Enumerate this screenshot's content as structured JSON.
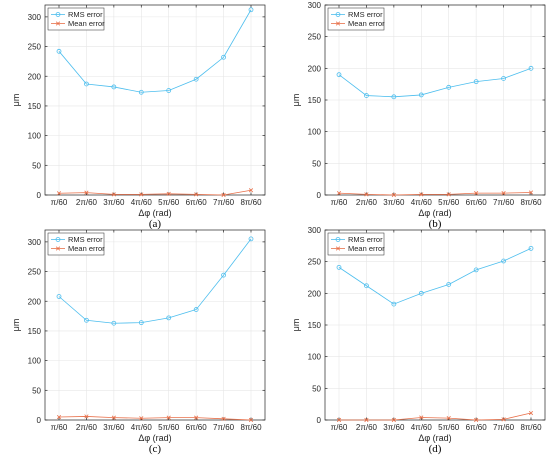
{
  "chart_data": [
    {
      "type": "line",
      "caption": "(a)",
      "categories": [
        "π/60",
        "2π/60",
        "3π/60",
        "4π/60",
        "5π/60",
        "6π/60",
        "7π/60",
        "8π/60"
      ],
      "xlabel": "Δφ (rad)",
      "ylabel": "μm",
      "ylim": [
        0,
        320
      ],
      "yticks": [
        0,
        50,
        100,
        150,
        200,
        250,
        300
      ],
      "grid": true,
      "legend": "top-left",
      "series": [
        {
          "name": "RMS error",
          "color": "#4DBEEE",
          "marker": "circle",
          "values": [
            242,
            187,
            182,
            173,
            176,
            195,
            232,
            312
          ]
        },
        {
          "name": "Mean error",
          "color": "#E8704A",
          "marker": "x",
          "values": [
            3,
            4,
            1,
            1,
            2,
            1,
            0,
            8
          ]
        }
      ]
    },
    {
      "type": "line",
      "caption": "(b)",
      "categories": [
        "π/60",
        "2π/60",
        "3π/60",
        "4π/60",
        "5π/60",
        "6π/60",
        "7π/60",
        "8π/60"
      ],
      "xlabel": "Δφ (rad)",
      "ylabel": "μm",
      "ylim": [
        0,
        300
      ],
      "yticks": [
        0,
        50,
        100,
        150,
        200,
        250,
        300
      ],
      "grid": true,
      "legend": "top-left",
      "series": [
        {
          "name": "RMS error",
          "color": "#4DBEEE",
          "marker": "circle",
          "values": [
            190,
            157,
            155,
            158,
            170,
            179,
            184,
            200
          ]
        },
        {
          "name": "Mean error",
          "color": "#E8704A",
          "marker": "x",
          "values": [
            3,
            1,
            0,
            1,
            1,
            3,
            3,
            4
          ]
        }
      ]
    },
    {
      "type": "line",
      "caption": "(c)",
      "categories": [
        "π/60",
        "2π/60",
        "3π/60",
        "4π/60",
        "5π/60",
        "6π/60",
        "7π/60",
        "8π/60"
      ],
      "xlabel": "Δφ (rad)",
      "ylabel": "μm",
      "ylim": [
        0,
        320
      ],
      "yticks": [
        0,
        50,
        100,
        150,
        200,
        250,
        300
      ],
      "grid": true,
      "legend": "top-left",
      "series": [
        {
          "name": "RMS error",
          "color": "#4DBEEE",
          "marker": "circle",
          "values": [
            208,
            168,
            163,
            164,
            172,
            186,
            244,
            305
          ]
        },
        {
          "name": "Mean error",
          "color": "#E8704A",
          "marker": "x",
          "values": [
            5,
            6,
            4,
            3,
            4,
            4,
            2,
            0
          ]
        }
      ]
    },
    {
      "type": "line",
      "caption": "(d)",
      "categories": [
        "π/60",
        "2π/60",
        "3π/60",
        "4π/60",
        "5π/60",
        "6π/60",
        "7π/60",
        "8π/60"
      ],
      "xlabel": "Δφ (rad)",
      "ylabel": "μm",
      "ylim": [
        0,
        300
      ],
      "yticks": [
        0,
        50,
        100,
        150,
        200,
        250,
        300
      ],
      "grid": true,
      "legend": "top-left",
      "series": [
        {
          "name": "RMS error",
          "color": "#4DBEEE",
          "marker": "circle",
          "values": [
            241,
            212,
            183,
            200,
            214,
            237,
            251,
            271
          ]
        },
        {
          "name": "Mean error",
          "color": "#E8704A",
          "marker": "x",
          "values": [
            0,
            0,
            0,
            4,
            3,
            0,
            1,
            11
          ]
        }
      ]
    }
  ]
}
